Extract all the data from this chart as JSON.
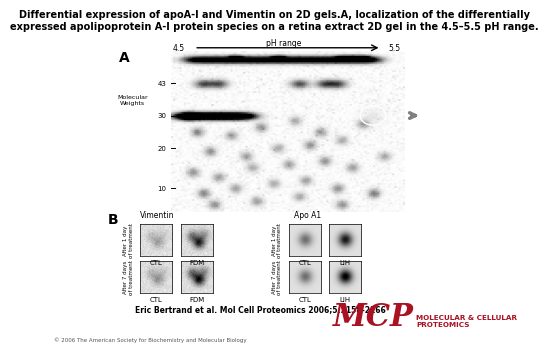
{
  "title_line1": "Differential expression of apoA-I and Vimentin on 2D gels.A, localization of the differentially",
  "title_line2": "expressed apolipoprotein A-I protein species on a retina extract 2D gel in the 4.5–5.5 pH range.",
  "panel_A_label": "A",
  "panel_B_label": "B",
  "pH_range_label": "pH range",
  "pH_left": "4.5",
  "pH_right": "5.5",
  "mw_label": "Molecular\nWeights",
  "mw_ticks": [
    "43",
    "30",
    "20",
    "10"
  ],
  "vimentin_label": "Vimentin",
  "apoA1_label": "Apo A1",
  "col_labels_vim": [
    "CTL",
    "FDM"
  ],
  "col_labels_apo": [
    "CTL",
    "LIH"
  ],
  "row_label1": "After 1 day\nof treatment",
  "row_label2": "After 7 days\nof treatment",
  "citation": "Eric Bertrand et al. Mol Cell Proteomics 2006;5:2158-2166",
  "copyright": "© 2006 The American Society for Biochemistry and Molecular Biology",
  "mcp_text": "MCP",
  "prot_text": "MOLECULAR & CELLULAR\nPROTEOMICS",
  "bg_color": "#ffffff",
  "mcp_color": "#aa1122",
  "title_fontsize": 7.0,
  "label_fontsize": 7
}
